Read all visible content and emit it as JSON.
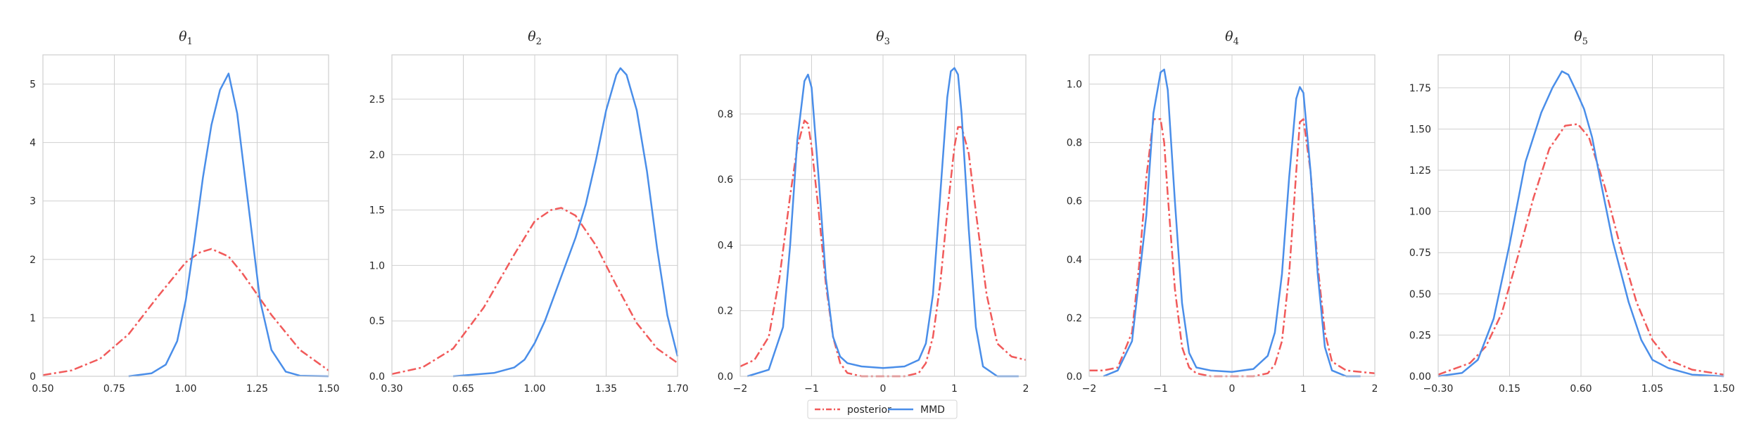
{
  "figure": {
    "colors": {
      "posterior": "#f15a5a",
      "mmd": "#4a8ee9",
      "grid": "#d0d0d0",
      "frame": "#cfcfcf"
    }
  },
  "legend": {
    "placement": "bottom-center",
    "items": [
      {
        "label": "posterior",
        "color": "#f15a5a",
        "style": "dashdot"
      },
      {
        "label": "MMD",
        "color": "#4a8ee9",
        "style": "solid"
      }
    ]
  },
  "chart_data": [
    {
      "type": "line",
      "title": "θ1",
      "title_base": "θ",
      "title_sub": "1",
      "xlim": [
        0.5,
        1.5
      ],
      "ylim": [
        0,
        5.5
      ],
      "xticks": [
        0.5,
        0.75,
        1.0,
        1.25,
        1.5
      ],
      "xtick_labels": [
        "0.50",
        "0.75",
        "1.00",
        "1.25",
        "1.50"
      ],
      "yticks": [
        0,
        1,
        2,
        3,
        4,
        5
      ],
      "ytick_labels": [
        "0",
        "1",
        "2",
        "3",
        "4",
        "5"
      ],
      "grid": true,
      "series": [
        {
          "name": "posterior",
          "style": "dashdot",
          "x": [
            0.5,
            0.6,
            0.7,
            0.8,
            0.9,
            1.0,
            1.05,
            1.09,
            1.15,
            1.2,
            1.3,
            1.4,
            1.5
          ],
          "y": [
            0.02,
            0.1,
            0.3,
            0.72,
            1.35,
            1.95,
            2.12,
            2.18,
            2.05,
            1.75,
            1.05,
            0.45,
            0.1
          ]
        },
        {
          "name": "MMD",
          "style": "solid",
          "x": [
            0.8,
            0.88,
            0.93,
            0.97,
            1.0,
            1.03,
            1.06,
            1.09,
            1.12,
            1.15,
            1.18,
            1.2,
            1.23,
            1.26,
            1.3,
            1.35,
            1.4,
            1.5
          ],
          "y": [
            0.0,
            0.05,
            0.2,
            0.6,
            1.3,
            2.3,
            3.4,
            4.3,
            4.9,
            5.18,
            4.5,
            3.7,
            2.5,
            1.3,
            0.45,
            0.08,
            0.01,
            0.0
          ]
        }
      ]
    },
    {
      "type": "line",
      "title": "θ2",
      "title_base": "θ",
      "title_sub": "2",
      "xlim": [
        0.3,
        1.7
      ],
      "ylim": [
        0,
        2.9
      ],
      "xticks": [
        0.3,
        0.65,
        1.0,
        1.35,
        1.7
      ],
      "xtick_labels": [
        "0.30",
        "0.65",
        "1.00",
        "1.35",
        "1.70"
      ],
      "yticks": [
        0,
        0.5,
        1.0,
        1.5,
        2.0,
        2.5
      ],
      "ytick_labels": [
        "0.0",
        "0.5",
        "1.0",
        "1.5",
        "2.0",
        "2.5"
      ],
      "grid": true,
      "series": [
        {
          "name": "posterior",
          "style": "dashdot",
          "x": [
            0.3,
            0.45,
            0.6,
            0.75,
            0.9,
            1.0,
            1.08,
            1.13,
            1.2,
            1.3,
            1.4,
            1.5,
            1.6,
            1.7
          ],
          "y": [
            0.02,
            0.08,
            0.25,
            0.62,
            1.1,
            1.4,
            1.5,
            1.52,
            1.45,
            1.18,
            0.82,
            0.48,
            0.25,
            0.12
          ]
        },
        {
          "name": "MMD",
          "style": "solid",
          "x": [
            0.6,
            0.8,
            0.9,
            0.95,
            1.0,
            1.05,
            1.1,
            1.15,
            1.2,
            1.25,
            1.3,
            1.35,
            1.4,
            1.42,
            1.45,
            1.5,
            1.55,
            1.6,
            1.65,
            1.7
          ],
          "y": [
            0.0,
            0.03,
            0.08,
            0.15,
            0.3,
            0.5,
            0.75,
            1.0,
            1.25,
            1.55,
            1.95,
            2.4,
            2.72,
            2.78,
            2.72,
            2.4,
            1.85,
            1.15,
            0.55,
            0.18
          ]
        }
      ]
    },
    {
      "type": "line",
      "title": "θ3",
      "title_base": "θ",
      "title_sub": "3",
      "xlim": [
        -2,
        2
      ],
      "ylim": [
        0,
        0.98
      ],
      "xticks": [
        -2,
        -1,
        0,
        1,
        2
      ],
      "xtick_labels": [
        "−2",
        "−1",
        "0",
        "1",
        "2"
      ],
      "yticks": [
        0,
        0.2,
        0.4,
        0.6,
        0.8
      ],
      "ytick_labels": [
        "0.0",
        "0.2",
        "0.4",
        "0.6",
        "0.8"
      ],
      "grid": true,
      "series": [
        {
          "name": "posterior",
          "style": "dashdot",
          "x": [
            -2,
            -1.8,
            -1.6,
            -1.45,
            -1.3,
            -1.2,
            -1.1,
            -1.05,
            -1.0,
            -0.9,
            -0.8,
            -0.7,
            -0.6,
            -0.5,
            -0.3,
            0,
            0.3,
            0.5,
            0.6,
            0.7,
            0.8,
            0.9,
            1.0,
            1.05,
            1.1,
            1.2,
            1.3,
            1.45,
            1.6,
            1.8,
            2
          ],
          "y": [
            0.03,
            0.05,
            0.12,
            0.3,
            0.55,
            0.7,
            0.78,
            0.77,
            0.7,
            0.5,
            0.28,
            0.12,
            0.04,
            0.01,
            0.0,
            0.0,
            0.0,
            0.01,
            0.04,
            0.12,
            0.28,
            0.5,
            0.7,
            0.76,
            0.76,
            0.68,
            0.5,
            0.25,
            0.1,
            0.06,
            0.05
          ]
        },
        {
          "name": "MMD",
          "style": "solid",
          "x": [
            -1.9,
            -1.6,
            -1.4,
            -1.3,
            -1.2,
            -1.1,
            -1.05,
            -1.0,
            -0.9,
            -0.8,
            -0.7,
            -0.6,
            -0.5,
            -0.3,
            0,
            0.3,
            0.5,
            0.6,
            0.7,
            0.8,
            0.9,
            0.95,
            1.0,
            1.05,
            1.1,
            1.2,
            1.3,
            1.4,
            1.6,
            1.9
          ],
          "y": [
            0.0,
            0.02,
            0.15,
            0.4,
            0.72,
            0.9,
            0.92,
            0.88,
            0.6,
            0.3,
            0.12,
            0.06,
            0.04,
            0.03,
            0.025,
            0.03,
            0.05,
            0.1,
            0.25,
            0.55,
            0.85,
            0.93,
            0.94,
            0.92,
            0.8,
            0.45,
            0.15,
            0.03,
            0.0,
            0.0
          ]
        }
      ]
    },
    {
      "type": "line",
      "title": "θ4",
      "title_base": "θ",
      "title_sub": "4",
      "xlim": [
        -2,
        2
      ],
      "ylim": [
        0,
        1.1
      ],
      "xticks": [
        -2,
        -1,
        0,
        1,
        2
      ],
      "xtick_labels": [
        "−2",
        "−1",
        "0",
        "1",
        "2"
      ],
      "yticks": [
        0,
        0.2,
        0.4,
        0.6,
        0.8,
        1.0
      ],
      "ytick_labels": [
        "0.0",
        "0.2",
        "0.4",
        "0.6",
        "0.8",
        "1.0"
      ],
      "grid": true,
      "series": [
        {
          "name": "posterior",
          "style": "dashdot",
          "x": [
            -2,
            -1.8,
            -1.6,
            -1.4,
            -1.3,
            -1.2,
            -1.1,
            -1.0,
            -0.95,
            -0.9,
            -0.8,
            -0.7,
            -0.6,
            -0.5,
            -0.3,
            0,
            0.3,
            0.5,
            0.6,
            0.7,
            0.8,
            0.9,
            0.95,
            1.0,
            1.1,
            1.2,
            1.3,
            1.4,
            1.6,
            1.8,
            2
          ],
          "y": [
            0.02,
            0.02,
            0.03,
            0.15,
            0.38,
            0.68,
            0.88,
            0.88,
            0.8,
            0.62,
            0.3,
            0.1,
            0.03,
            0.01,
            0.0,
            0.0,
            0.0,
            0.01,
            0.04,
            0.12,
            0.35,
            0.7,
            0.87,
            0.88,
            0.7,
            0.38,
            0.15,
            0.05,
            0.02,
            0.015,
            0.01
          ]
        },
        {
          "name": "MMD",
          "style": "solid",
          "x": [
            -1.8,
            -1.6,
            -1.4,
            -1.2,
            -1.1,
            -1.0,
            -0.95,
            -0.9,
            -0.8,
            -0.7,
            -0.6,
            -0.5,
            -0.3,
            0,
            0.3,
            0.5,
            0.6,
            0.7,
            0.8,
            0.9,
            0.95,
            1.0,
            1.1,
            1.2,
            1.3,
            1.4,
            1.6,
            1.8
          ],
          "y": [
            0.0,
            0.02,
            0.12,
            0.55,
            0.9,
            1.04,
            1.05,
            0.98,
            0.6,
            0.25,
            0.08,
            0.03,
            0.02,
            0.015,
            0.025,
            0.07,
            0.15,
            0.35,
            0.68,
            0.95,
            0.99,
            0.97,
            0.7,
            0.35,
            0.1,
            0.02,
            0.0,
            0.0
          ]
        }
      ]
    },
    {
      "type": "line",
      "title": "θ5",
      "title_base": "θ",
      "title_sub": "5",
      "xlim": [
        -0.3,
        1.5
      ],
      "ylim": [
        0,
        1.95
      ],
      "xticks": [
        -0.3,
        0.15,
        0.6,
        1.05,
        1.5
      ],
      "xtick_labels": [
        "−0.30",
        "0.15",
        "0.60",
        "1.05",
        "1.50"
      ],
      "yticks": [
        0,
        0.25,
        0.5,
        0.75,
        1.0,
        1.25,
        1.5,
        1.75
      ],
      "ytick_labels": [
        "0.00",
        "0.25",
        "0.50",
        "0.75",
        "1.00",
        "1.25",
        "1.50",
        "1.75"
      ],
      "grid": true,
      "series": [
        {
          "name": "posterior",
          "style": "dashdot",
          "x": [
            -0.3,
            -0.1,
            0.0,
            0.1,
            0.2,
            0.3,
            0.4,
            0.5,
            0.58,
            0.65,
            0.75,
            0.85,
            0.95,
            1.05,
            1.15,
            1.3,
            1.5
          ],
          "y": [
            0.01,
            0.08,
            0.18,
            0.38,
            0.72,
            1.08,
            1.38,
            1.52,
            1.53,
            1.45,
            1.15,
            0.78,
            0.45,
            0.22,
            0.1,
            0.04,
            0.01
          ]
        },
        {
          "name": "MMD",
          "style": "solid",
          "x": [
            -0.3,
            -0.15,
            -0.05,
            0.05,
            0.15,
            0.25,
            0.35,
            0.42,
            0.48,
            0.52,
            0.57,
            0.62,
            0.67,
            0.72,
            0.8,
            0.9,
            0.98,
            1.05,
            1.15,
            1.3,
            1.5
          ],
          "y": [
            0.0,
            0.02,
            0.1,
            0.35,
            0.8,
            1.3,
            1.6,
            1.75,
            1.85,
            1.83,
            1.73,
            1.62,
            1.45,
            1.2,
            0.82,
            0.45,
            0.22,
            0.1,
            0.05,
            0.01,
            0.0
          ]
        }
      ]
    }
  ]
}
